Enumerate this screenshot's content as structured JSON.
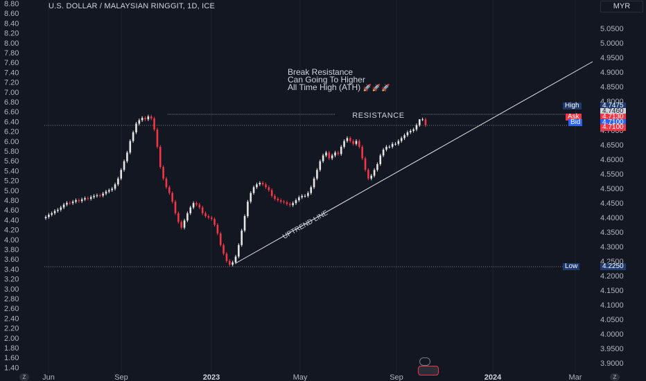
{
  "header": {
    "symbol_title": "U.S. DOLLAR / MALAYSIAN RINGGIT, 1D, ICE",
    "currency": "MYR"
  },
  "annotations": {
    "note_lines": [
      "Break Resistance",
      "Can Going To Higher",
      "All Time High (ATH)"
    ],
    "rocket_emojis": "🚀🚀🚀",
    "resistance_label": "RESISTANCE",
    "uptrend_label": "UPTREND LINE"
  },
  "price_tags": {
    "high_label": "High",
    "high_value": "4.7475",
    "last_value": "4.7460",
    "ask_label": "Ask",
    "ask_value": "4.7130",
    "bid_label": "Bid",
    "bid_value": "4.7100",
    "bid_dup_value": "4.7100",
    "low_label": "Low",
    "low_value": "4.2250"
  },
  "corner": {
    "left_btn": "Z",
    "right_btn": "Z"
  },
  "chart_data": {
    "type": "candlestick",
    "title": "U.S. DOLLAR / MALAYSIAN RINGGIT, 1D, ICE",
    "left_axis_ticks": [
      "8.80",
      "8.60",
      "8.40",
      "8.20",
      "8.00",
      "7.80",
      "7.60",
      "7.40",
      "7.20",
      "7.00",
      "6.80",
      "6.60",
      "6.40",
      "6.20",
      "6.00",
      "5.80",
      "5.60",
      "5.40",
      "5.20",
      "5.00",
      "4.80",
      "4.60",
      "4.40",
      "4.20",
      "4.00",
      "3.80",
      "3.60",
      "3.40",
      "3.20",
      "3.00",
      "2.80",
      "2.60",
      "2.40",
      "2.20",
      "2.00",
      "1.80",
      "1.60",
      "1.40"
    ],
    "right_axis_ticks": [
      "5.0500",
      "5.0000",
      "4.9500",
      "4.9000",
      "4.8500",
      "4.8000",
      "4.7500",
      "4.7000",
      "4.6500",
      "4.6000",
      "4.5500",
      "4.5000",
      "4.4500",
      "4.4000",
      "4.3500",
      "4.3000",
      "4.2500",
      "4.2000",
      "4.1500",
      "4.1000",
      "4.0500",
      "4.0000",
      "3.9500",
      "3.9000"
    ],
    "x_ticks": [
      "Jun",
      "Sep",
      "2023",
      "May",
      "Sep",
      "2024",
      "Mar"
    ],
    "ylim_right": [
      3.88,
      5.06
    ],
    "resistance_level": 4.7475,
    "low_level": 4.225,
    "series": [
      {
        "values": [
          4.397,
          4.405,
          4.41,
          4.418,
          4.422,
          4.43,
          4.44,
          4.446,
          4.445,
          4.45,
          4.455,
          4.452,
          4.458,
          4.462,
          4.46,
          4.466,
          4.47,
          4.472,
          4.471,
          4.478,
          4.485,
          4.49,
          4.495,
          4.51,
          4.53,
          4.56,
          4.59,
          4.62,
          4.66,
          4.69,
          4.72,
          4.732,
          4.74,
          4.735,
          4.745,
          4.738,
          4.7,
          4.64,
          4.57,
          4.53,
          4.5,
          4.48,
          4.45,
          4.41,
          4.38,
          4.36,
          4.385,
          4.41,
          4.43,
          4.445,
          4.44,
          4.43,
          4.41,
          4.4,
          4.395,
          4.39,
          4.37,
          4.34,
          4.3,
          4.27,
          4.245,
          4.232,
          4.24,
          4.26,
          4.3,
          4.35,
          4.4,
          4.45,
          4.48,
          4.5,
          4.51,
          4.515,
          4.51,
          4.5,
          4.49,
          4.47,
          4.46,
          4.455,
          4.45,
          4.448,
          4.442,
          4.438,
          4.445,
          4.455,
          4.465,
          4.47,
          4.47,
          4.48,
          4.5,
          4.53,
          4.56,
          4.59,
          4.61,
          4.62,
          4.6,
          4.61,
          4.62,
          4.615,
          4.64,
          4.66,
          4.67,
          4.66,
          4.65,
          4.66,
          4.64,
          4.6,
          4.56,
          4.53,
          4.54,
          4.56,
          4.58,
          4.61,
          4.63,
          4.64,
          4.64,
          4.65,
          4.65,
          4.66,
          4.67,
          4.68,
          4.69,
          4.695,
          4.7,
          4.715,
          4.735,
          4.735,
          4.715
        ]
      }
    ]
  }
}
